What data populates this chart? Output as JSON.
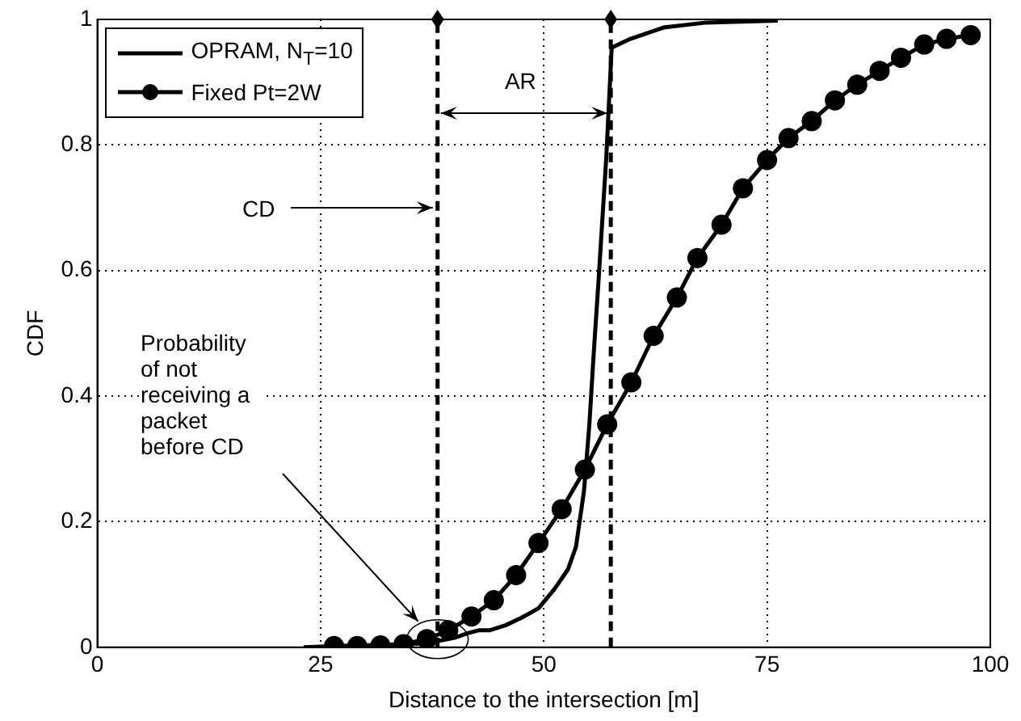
{
  "chart_data": {
    "type": "line",
    "xlabel": "Distance to the intersection [m]",
    "ylabel": "CDF",
    "xlim": [
      0,
      100
    ],
    "xticks": [
      0,
      25,
      50,
      75,
      100
    ],
    "ylim": [
      0,
      1
    ],
    "yticks": [
      0,
      0.2,
      0.4,
      0.6,
      0.8,
      1
    ],
    "grid": true,
    "legend": "top left",
    "line_style": "solid",
    "series": [
      {
        "name": "OPRAM, N$_{T}$=10",
        "color": "#000000",
        "marker": "none",
        "x": [
          23.1,
          27,
          32,
          36,
          37.8,
          40,
          41.4,
          42.7,
          43.9,
          45.7,
          47.5,
          49.4,
          51.2,
          52.7,
          53.6,
          54.5,
          55.1,
          55.6,
          56.1,
          57,
          57.6,
          59.7,
          63.4,
          68.2,
          76.2
        ],
        "values": [
          0,
          0.002,
          0.004,
          0.006,
          0.009,
          0.015,
          0.022,
          0.027,
          0.027,
          0.035,
          0.047,
          0.062,
          0.093,
          0.124,
          0.16,
          0.249,
          0.355,
          0.471,
          0.578,
          0.782,
          0.955,
          0.969,
          0.987,
          0.995,
          0.998
        ]
      },
      {
        "name": "Fixed Pt=2W",
        "color": "#000000",
        "marker": "circle",
        "x": [
          26.5,
          29.1,
          31.7,
          34.3,
          36.9,
          39.3,
          41.9,
          44.4,
          46.9,
          49.4,
          52,
          54.6,
          57.1,
          59.8,
          62.3,
          64.9,
          67.2,
          69.9,
          72.3,
          75,
          77.4,
          80,
          82.6,
          85.1,
          87.6,
          90,
          92.6,
          95.1,
          97.8
        ],
        "values": [
          0.002,
          0.002,
          0.003,
          0.005,
          0.013,
          0.027,
          0.049,
          0.075,
          0.115,
          0.166,
          0.22,
          0.283,
          0.355,
          0.422,
          0.496,
          0.557,
          0.62,
          0.673,
          0.731,
          0.776,
          0.811,
          0.838,
          0.871,
          0.896,
          0.918,
          0.939,
          0.96,
          0.969,
          0.975
        ]
      }
    ],
    "ref_lines": [
      {
        "axis": "x",
        "value": 38.1,
        "color": "#000000",
        "line_style": "dashed"
      },
      {
        "axis": "x",
        "value": 57.5,
        "color": "#000000",
        "line_style": "dashed"
      }
    ],
    "annotations": [
      {
        "text": "CD",
        "x": 38.1,
        "y": 0.7
      },
      "AR",
      "Probability of not receiving a packet before CD"
    ]
  }
}
